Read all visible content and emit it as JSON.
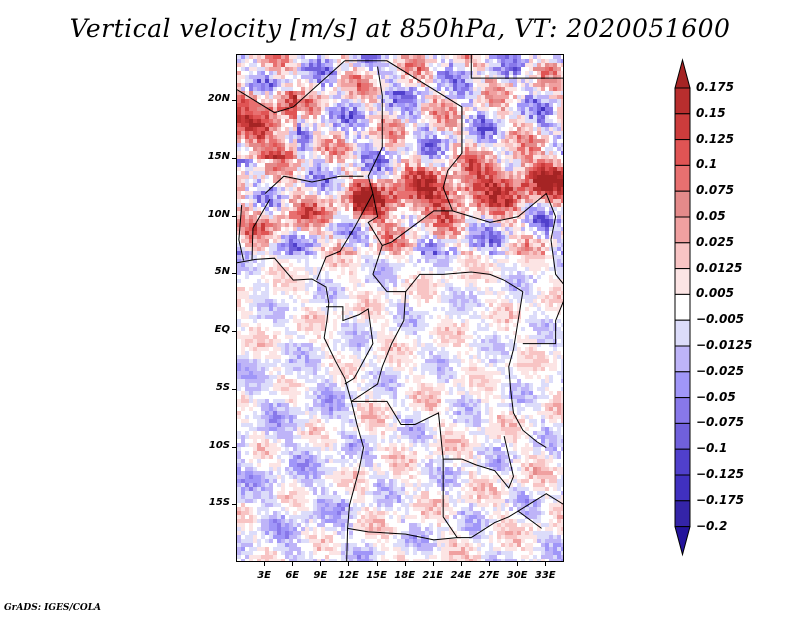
{
  "title": "Vertical velocity [m/s] at 850hPa, VT: 2020051600",
  "footer": "GrADS: IGES/COLA",
  "map": {
    "lon_range": [
      0,
      35
    ],
    "lat_range": [
      -20,
      24
    ],
    "y_ticks": [
      {
        "label": "20N",
        "lat": 20
      },
      {
        "label": "15N",
        "lat": 15
      },
      {
        "label": "10N",
        "lat": 10
      },
      {
        "label": "5N",
        "lat": 5
      },
      {
        "label": "EQ",
        "lat": 0
      },
      {
        "label": "5S",
        "lat": -5
      },
      {
        "label": "10S",
        "lat": -10
      },
      {
        "label": "15S",
        "lat": -15
      }
    ],
    "x_ticks": [
      {
        "label": "3E",
        "lon": 3
      },
      {
        "label": "6E",
        "lon": 6
      },
      {
        "label": "9E",
        "lon": 9
      },
      {
        "label": "12E",
        "lon": 12
      },
      {
        "label": "15E",
        "lon": 15
      },
      {
        "label": "18E",
        "lon": 18
      },
      {
        "label": "21E",
        "lon": 21
      },
      {
        "label": "24E",
        "lon": 24
      },
      {
        "label": "27E",
        "lon": 27
      },
      {
        "label": "30E",
        "lon": 30
      },
      {
        "label": "33E",
        "lon": 33
      }
    ]
  },
  "colorbar": {
    "labels": [
      "0.175",
      "0.15",
      "0.125",
      "0.1",
      "0.075",
      "0.05",
      "0.025",
      "0.0125",
      "0.005",
      "-0.005",
      "-0.0125",
      "-0.025",
      "-0.05",
      "-0.075",
      "-0.1",
      "-0.125",
      "-0.175",
      "-0.2"
    ],
    "colors": [
      "#a52424",
      "#b82e2e",
      "#cc3c3c",
      "#e05454",
      "#e87070",
      "#e48a8a",
      "#f0a0a0",
      "#f8c4c4",
      "#fce4e4",
      "#ffffff",
      "#dcdcfa",
      "#beb4f8",
      "#a096f8",
      "#8878ea",
      "#7060dc",
      "#5040cc",
      "#4030c0",
      "#3424a8",
      "#24149c"
    ],
    "units": "m/s"
  },
  "chart_data": {
    "type": "heatmap",
    "title": "Vertical velocity [m/s] at 850hPa, VT: 2020051600",
    "variable": "Vertical velocity",
    "units": "m/s",
    "level": "850hPa",
    "valid_time": "2020051600",
    "xlabel": "",
    "ylabel": "",
    "x_range_lon": [
      0,
      35
    ],
    "y_range_lat": [
      -20,
      24
    ],
    "x_tick_labels": [
      "3E",
      "6E",
      "9E",
      "12E",
      "15E",
      "18E",
      "21E",
      "24E",
      "27E",
      "30E",
      "33E"
    ],
    "y_tick_labels": [
      "20N",
      "15N",
      "10N",
      "5N",
      "EQ",
      "5S",
      "10S",
      "15S"
    ],
    "color_levels": [
      0.175,
      0.15,
      0.125,
      0.1,
      0.075,
      0.05,
      0.025,
      0.0125,
      0.005,
      -0.005,
      -0.0125,
      -0.025,
      -0.05,
      -0.075,
      -0.1,
      -0.125,
      -0.175,
      -0.2
    ],
    "legend": "right",
    "notes": "Strong positive (red) bands across Sahel ~10-15N; mostly weak mixed values over Congo basin and Angola; negative (blue) patches over Sahara."
  }
}
